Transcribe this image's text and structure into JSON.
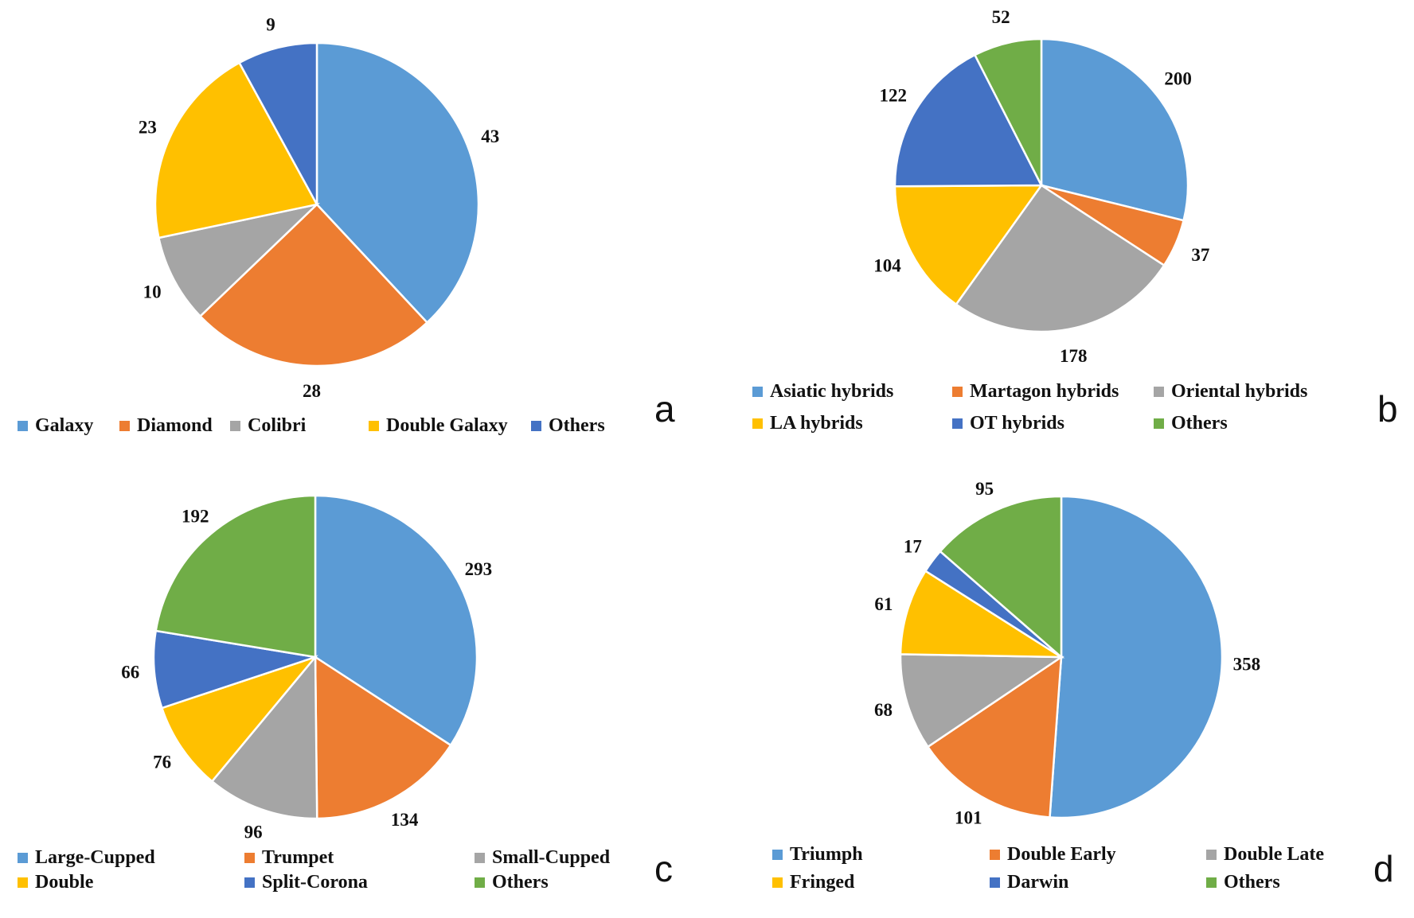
{
  "colors": {
    "blue": "#5B9BD5",
    "orange": "#ED7D31",
    "gray": "#A5A5A5",
    "yellow": "#FFC000",
    "darkblue": "#4472C4",
    "green": "#70AD47"
  },
  "chart_data": [
    {
      "type": "pie",
      "panel_label": "a",
      "categories": [
        "Galaxy",
        "Diamond",
        "Colibri",
        "Double Galaxy",
        "Others"
      ],
      "values": [
        43,
        28,
        10,
        23,
        9
      ],
      "value_labels": [
        "43",
        "28",
        "10",
        "23",
        "9"
      ],
      "colors": [
        "#5B9BD5",
        "#ED7D31",
        "#A5A5A5",
        "#FFC000",
        "#4472C4"
      ],
      "legend_position": "bottom"
    },
    {
      "type": "pie",
      "panel_label": "b",
      "categories": [
        "Asiatic hybrids",
        "Martagon hybrids",
        "Oriental hybrids",
        "LA hybrids",
        "OT hybrids",
        "Others"
      ],
      "values": [
        200,
        37,
        178,
        104,
        122,
        52
      ],
      "value_labels": [
        "200",
        "37",
        "178",
        "104",
        "122",
        "52"
      ],
      "colors": [
        "#5B9BD5",
        "#ED7D31",
        "#A5A5A5",
        "#FFC000",
        "#4472C4",
        "#70AD47"
      ],
      "legend_position": "bottom"
    },
    {
      "type": "pie",
      "panel_label": "c",
      "categories": [
        "Large-Cupped",
        "Trumpet",
        "Small-Cupped",
        "Double",
        "Split-Corona",
        "Others"
      ],
      "values": [
        293,
        134,
        96,
        76,
        66,
        192
      ],
      "value_labels": [
        "293",
        "134",
        "96",
        "76",
        "66",
        "192"
      ],
      "colors": [
        "#5B9BD5",
        "#ED7D31",
        "#A5A5A5",
        "#FFC000",
        "#4472C4",
        "#70AD47"
      ],
      "legend_position": "bottom"
    },
    {
      "type": "pie",
      "panel_label": "d",
      "categories": [
        "Triumph",
        "Double Early",
        "Double Late",
        "Fringed",
        "Darwin",
        "Others"
      ],
      "values": [
        358,
        101,
        68,
        61,
        17,
        95
      ],
      "value_labels": [
        "358",
        "101",
        "68",
        "61",
        "17",
        "95"
      ],
      "colors": [
        "#5B9BD5",
        "#ED7D31",
        "#A5A5A5",
        "#FFC000",
        "#4472C4",
        "#70AD47"
      ],
      "legend_position": "bottom"
    }
  ]
}
